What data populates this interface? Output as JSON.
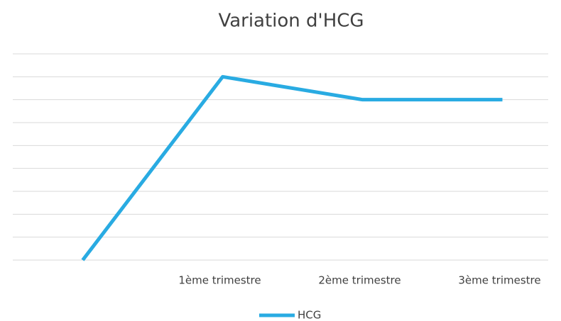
{
  "chart_data": {
    "type": "line",
    "title": "Variation d'HCG",
    "categories": [
      null,
      "1ème trimestre",
      "2ème trimestre",
      "3ème trimestre"
    ],
    "series": [
      {
        "name": "HCG",
        "color": "#29abe2",
        "values": [
          0,
          8,
          7,
          7
        ]
      }
    ],
    "ylim": [
      0,
      9
    ],
    "yticks": [
      0,
      1,
      2,
      3,
      4,
      5,
      6,
      7,
      8,
      9
    ],
    "grid": true,
    "legend": "bottom"
  }
}
